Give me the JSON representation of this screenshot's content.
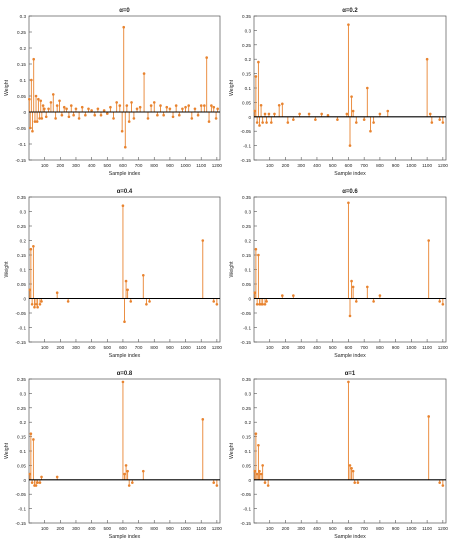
{
  "figure": {
    "panels": [
      {
        "title": "α=0",
        "xlabel": "Sample index",
        "ylabel": "Weight"
      },
      {
        "title": "α=0.2",
        "xlabel": "Sample index",
        "ylabel": "Weight"
      },
      {
        "title": "α=0.4",
        "xlabel": "Sample index",
        "ylabel": "Weight"
      },
      {
        "title": "α=0.6",
        "xlabel": "Sample index",
        "ylabel": "Weight"
      },
      {
        "title": "α=0.8",
        "xlabel": "Sample index",
        "ylabel": "Weight"
      },
      {
        "title": "α=1",
        "xlabel": "Sample index",
        "ylabel": "Weight"
      }
    ]
  },
  "colors": {
    "stem": "#e8832f",
    "baseline": "#000000",
    "axis": "#555555",
    "text": "#222222"
  },
  "chart_data": [
    {
      "type": "stem",
      "title": "α=0",
      "xlabel": "Sample index",
      "ylabel": "Weight",
      "xlim": [
        0,
        1220
      ],
      "ylim": [
        -0.15,
        0.3
      ],
      "xticks": [
        100,
        200,
        300,
        400,
        500,
        600,
        700,
        800,
        900,
        1000,
        1100,
        1200
      ],
      "yticks": [
        -0.15,
        -0.1,
        -0.05,
        0,
        0.05,
        0.1,
        0.15,
        0.2,
        0.25,
        0.3
      ],
      "x": [
        2,
        8,
        15,
        22,
        30,
        38,
        45,
        52,
        60,
        68,
        75,
        82,
        90,
        98,
        110,
        125,
        140,
        155,
        170,
        180,
        195,
        210,
        225,
        240,
        255,
        270,
        285,
        300,
        320,
        340,
        360,
        380,
        400,
        420,
        440,
        460,
        480,
        500,
        520,
        540,
        560,
        580,
        595,
        605,
        615,
        625,
        640,
        655,
        670,
        690,
        710,
        735,
        760,
        780,
        800,
        820,
        840,
        860,
        880,
        900,
        920,
        940,
        960,
        980,
        1000,
        1020,
        1040,
        1060,
        1080,
        1100,
        1120,
        1135,
        1150,
        1165,
        1180,
        1195,
        1205
      ],
      "y": [
        0.04,
        -0.05,
        0.1,
        -0.06,
        0.165,
        -0.03,
        0.05,
        -0.03,
        0.04,
        -0.02,
        0.035,
        -0.02,
        0.02,
        0.01,
        -0.015,
        0.01,
        0.03,
        0.055,
        -0.02,
        0.02,
        0.035,
        -0.01,
        0.015,
        0.01,
        -0.015,
        0.02,
        -0.01,
        0.01,
        -0.02,
        0.015,
        -0.01,
        0.01,
        0.005,
        -0.01,
        0.01,
        -0.01,
        0.005,
        -0.005,
        0.015,
        -0.02,
        0.03,
        0.02,
        -0.06,
        0.265,
        -0.11,
        0.02,
        -0.03,
        0.03,
        -0.02,
        0.01,
        0.015,
        0.12,
        -0.02,
        0.02,
        0.03,
        -0.01,
        0.02,
        -0.01,
        0.015,
        0.01,
        -0.015,
        0.02,
        -0.01,
        0.01,
        0.015,
        0.02,
        -0.02,
        0.01,
        -0.01,
        0.02,
        0.02,
        0.17,
        -0.03,
        0.02,
        0.015,
        -0.02,
        0.01
      ]
    },
    {
      "type": "stem",
      "title": "α=0.2",
      "xlabel": "Sample index",
      "ylabel": "Weight",
      "xlim": [
        0,
        1220
      ],
      "ylim": [
        -0.15,
        0.35
      ],
      "xticks": [
        100,
        200,
        300,
        400,
        500,
        600,
        700,
        800,
        900,
        1000,
        1100,
        1200
      ],
      "yticks": [
        -0.15,
        -0.1,
        -0.05,
        0,
        0.05,
        0.1,
        0.15,
        0.2,
        0.25,
        0.3,
        0.35
      ],
      "x": [
        5,
        12,
        20,
        28,
        35,
        45,
        55,
        70,
        80,
        95,
        110,
        130,
        160,
        180,
        215,
        250,
        290,
        350,
        390,
        430,
        470,
        530,
        590,
        600,
        610,
        620,
        630,
        650,
        700,
        720,
        740,
        760,
        800,
        850,
        1100,
        1120,
        1130,
        1180,
        1200
      ],
      "y": [
        0.02,
        0.14,
        -0.02,
        0.19,
        -0.03,
        0.04,
        -0.02,
        0.01,
        -0.02,
        0.01,
        -0.02,
        0.01,
        0.04,
        0.045,
        -0.02,
        -0.01,
        0.01,
        0.01,
        -0.01,
        0.01,
        0.005,
        -0.01,
        0.01,
        0.32,
        -0.1,
        0.07,
        0.02,
        -0.02,
        -0.01,
        0.1,
        -0.05,
        -0.02,
        0.01,
        0.02,
        0.2,
        0.01,
        -0.02,
        -0.01,
        -0.02
      ]
    },
    {
      "type": "stem",
      "title": "α=0.4",
      "xlabel": "Sample index",
      "ylabel": "Weight",
      "xlim": [
        0,
        1220
      ],
      "ylim": [
        -0.15,
        0.35
      ],
      "xticks": [
        100,
        200,
        300,
        400,
        500,
        600,
        700,
        800,
        900,
        1000,
        1100,
        1200
      ],
      "yticks": [
        -0.15,
        -0.1,
        -0.05,
        0,
        0.05,
        0.1,
        0.15,
        0.2,
        0.25,
        0.3,
        0.35
      ],
      "x": [
        5,
        12,
        20,
        28,
        35,
        45,
        55,
        70,
        80,
        180,
        250,
        600,
        610,
        620,
        630,
        650,
        730,
        750,
        770,
        1110,
        1180,
        1200
      ],
      "y": [
        0.03,
        0.17,
        -0.02,
        0.18,
        -0.03,
        -0.02,
        -0.03,
        -0.02,
        -0.01,
        0.02,
        -0.01,
        0.32,
        -0.08,
        0.06,
        0.03,
        -0.01,
        0.08,
        -0.02,
        -0.01,
        0.2,
        -0.01,
        -0.02
      ]
    },
    {
      "type": "stem",
      "title": "α=0.6",
      "xlabel": "Sample index",
      "ylabel": "Weight",
      "xlim": [
        0,
        1220
      ],
      "ylim": [
        -0.15,
        0.35
      ],
      "xticks": [
        100,
        200,
        300,
        400,
        500,
        600,
        700,
        800,
        900,
        1000,
        1100,
        1200
      ],
      "yticks": [
        -0.15,
        -0.1,
        -0.05,
        0,
        0.05,
        0.1,
        0.15,
        0.2,
        0.25,
        0.3,
        0.35
      ],
      "x": [
        5,
        12,
        20,
        28,
        35,
        45,
        55,
        70,
        80,
        180,
        250,
        600,
        610,
        620,
        630,
        650,
        720,
        760,
        800,
        1110,
        1180,
        1200
      ],
      "y": [
        0.02,
        0.17,
        -0.02,
        0.15,
        -0.02,
        -0.02,
        -0.02,
        -0.02,
        -0.01,
        0.01,
        0.01,
        0.33,
        -0.06,
        0.06,
        0.04,
        -0.01,
        0.04,
        -0.01,
        0.01,
        0.2,
        -0.01,
        -0.02
      ]
    },
    {
      "type": "stem",
      "title": "α=0.8",
      "xlabel": "Sample index",
      "ylabel": "Weight",
      "xlim": [
        0,
        1220
      ],
      "ylim": [
        -0.15,
        0.35
      ],
      "xticks": [
        100,
        200,
        300,
        400,
        500,
        600,
        700,
        800,
        900,
        1000,
        1100,
        1200
      ],
      "yticks": [
        -0.15,
        -0.1,
        -0.05,
        0,
        0.05,
        0.1,
        0.15,
        0.2,
        0.25,
        0.3,
        0.35
      ],
      "x": [
        5,
        12,
        20,
        28,
        35,
        45,
        55,
        70,
        80,
        180,
        600,
        610,
        620,
        630,
        640,
        660,
        730,
        1110,
        1180,
        1200
      ],
      "y": [
        0.02,
        0.16,
        -0.01,
        0.14,
        -0.02,
        -0.02,
        -0.01,
        -0.01,
        0.01,
        0.01,
        0.34,
        0.02,
        0.05,
        0.03,
        -0.02,
        -0.01,
        0.03,
        0.21,
        -0.01,
        -0.02
      ]
    },
    {
      "type": "stem",
      "title": "α=1",
      "xlabel": "Sample index",
      "ylabel": "Weight",
      "xlim": [
        0,
        1220
      ],
      "ylim": [
        -0.15,
        0.35
      ],
      "xticks": [
        100,
        200,
        300,
        400,
        500,
        600,
        700,
        800,
        900,
        1000,
        1100,
        1200
      ],
      "yticks": [
        -0.15,
        -0.1,
        -0.05,
        0,
        0.05,
        0.1,
        0.15,
        0.2,
        0.25,
        0.3,
        0.35
      ],
      "x": [
        5,
        12,
        20,
        28,
        35,
        45,
        55,
        70,
        90,
        600,
        610,
        620,
        630,
        640,
        660,
        1110,
        1180,
        1200
      ],
      "y": [
        0.03,
        0.16,
        0.02,
        0.12,
        0.03,
        0.02,
        0.05,
        -0.01,
        -0.02,
        0.34,
        0.05,
        0.04,
        0.03,
        -0.01,
        -0.01,
        0.22,
        -0.01,
        -0.02
      ]
    }
  ]
}
